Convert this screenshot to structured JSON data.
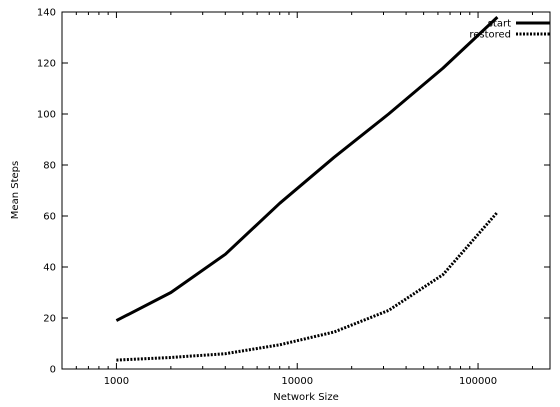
{
  "chart_data": {
    "type": "line",
    "title": "",
    "xlabel": "Network Size",
    "ylabel": "Mean Steps",
    "x_scale": "log",
    "xlim": [
      500,
      250000
    ],
    "ylim": [
      0,
      140
    ],
    "x_ticks": [
      {
        "value": 1000,
        "label": "1000"
      },
      {
        "value": 10000,
        "label": "10000"
      },
      {
        "value": 100000,
        "label": "100000"
      }
    ],
    "y_ticks": [
      0,
      20,
      40,
      60,
      80,
      100,
      120,
      140
    ],
    "grid": false,
    "legend_position": "top-right",
    "series": [
      {
        "name": "start",
        "style": "solid",
        "color": "#000000",
        "x": [
          1000,
          2000,
          4000,
          8000,
          16000,
          32000,
          64000,
          128000
        ],
        "y": [
          19,
          30,
          45,
          65,
          83,
          100,
          118,
          138
        ]
      },
      {
        "name": "restored",
        "style": "dotted",
        "color": "#000000",
        "x": [
          1000,
          2000,
          4000,
          8000,
          16000,
          32000,
          64000,
          128000
        ],
        "y": [
          3.5,
          4.5,
          6,
          9.5,
          14.5,
          23,
          37,
          61.5
        ]
      }
    ]
  }
}
